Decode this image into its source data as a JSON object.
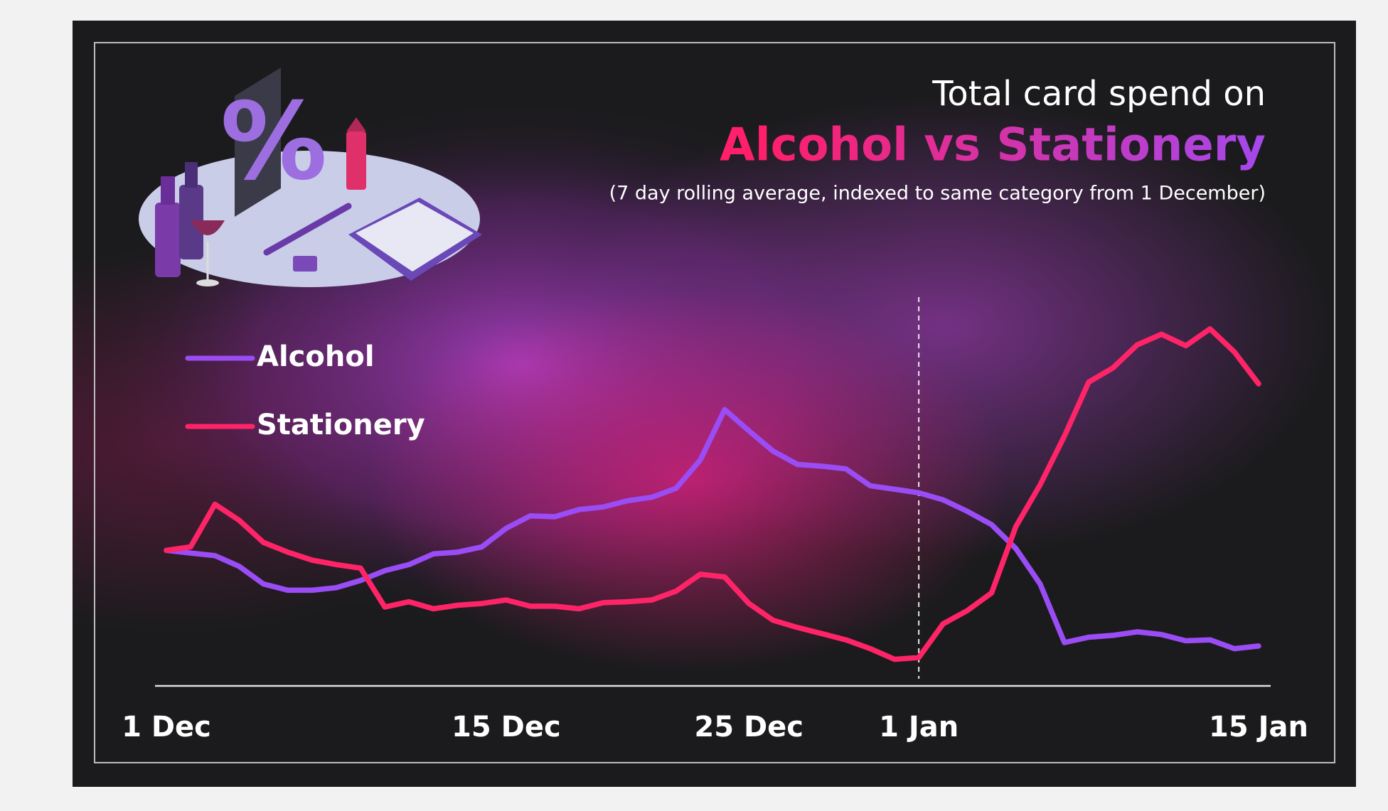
{
  "chart_data": {
    "type": "line",
    "title": "Total card spend on",
    "title_emphasis": "Alcohol vs Stationery",
    "subtitle": "(7 day rolling average, indexed to same category from 1 December)",
    "categories": [
      "1 Dec",
      null,
      null,
      null,
      null,
      null,
      null,
      null,
      null,
      null,
      null,
      null,
      null,
      null,
      "15 Dec",
      null,
      null,
      null,
      null,
      null,
      null,
      null,
      null,
      null,
      "25 Dec",
      null,
      null,
      null,
      null,
      null,
      null,
      "1 Jan",
      null,
      null,
      null,
      null,
      null,
      null,
      null,
      null,
      null,
      null,
      null,
      null,
      null,
      "15 Jan"
    ],
    "series": [
      {
        "name": "Alcohol",
        "color": "#9a4cf5",
        "values": [
          100,
          98.0,
          96.1,
          88.2,
          75.2,
          70.6,
          70.6,
          72.5,
          77.8,
          85.0,
          89.5,
          97.4,
          98.7,
          102.6,
          116.3,
          125.5,
          124.8,
          130.1,
          132.0,
          136.6,
          139.2,
          145.8,
          166.7,
          203.9,
          188.2,
          173.2,
          163.4,
          162.1,
          160.1,
          147.7,
          145.1,
          142.5,
          137.3,
          128.8,
          119.0,
          101.3,
          75.2,
          32.0,
          35.9,
          37.3,
          39.9,
          37.9,
          33.3,
          34.0,
          27.5,
          29.4
        ]
      },
      {
        "name": "Stationery",
        "color": "#ff2468",
        "values": [
          100,
          102.6,
          134.0,
          122.2,
          105.9,
          98.7,
          92.8,
          89.5,
          86.9,
          58.2,
          62.1,
          56.9,
          59.5,
          60.8,
          63.4,
          58.8,
          58.8,
          56.9,
          61.4,
          62.1,
          63.4,
          69.9,
          82.4,
          80.4,
          60.8,
          48.4,
          43.1,
          38.6,
          34.0,
          27.5,
          19.6,
          20.9,
          45.8,
          55.6,
          68.6,
          117.6,
          148.4,
          184.3,
          224.2,
          234.6,
          251.6,
          259.5,
          251.0,
          263.4,
          246.4,
          222.9
        ]
      }
    ],
    "ylim": [
      0,
      290
    ]
  }
}
